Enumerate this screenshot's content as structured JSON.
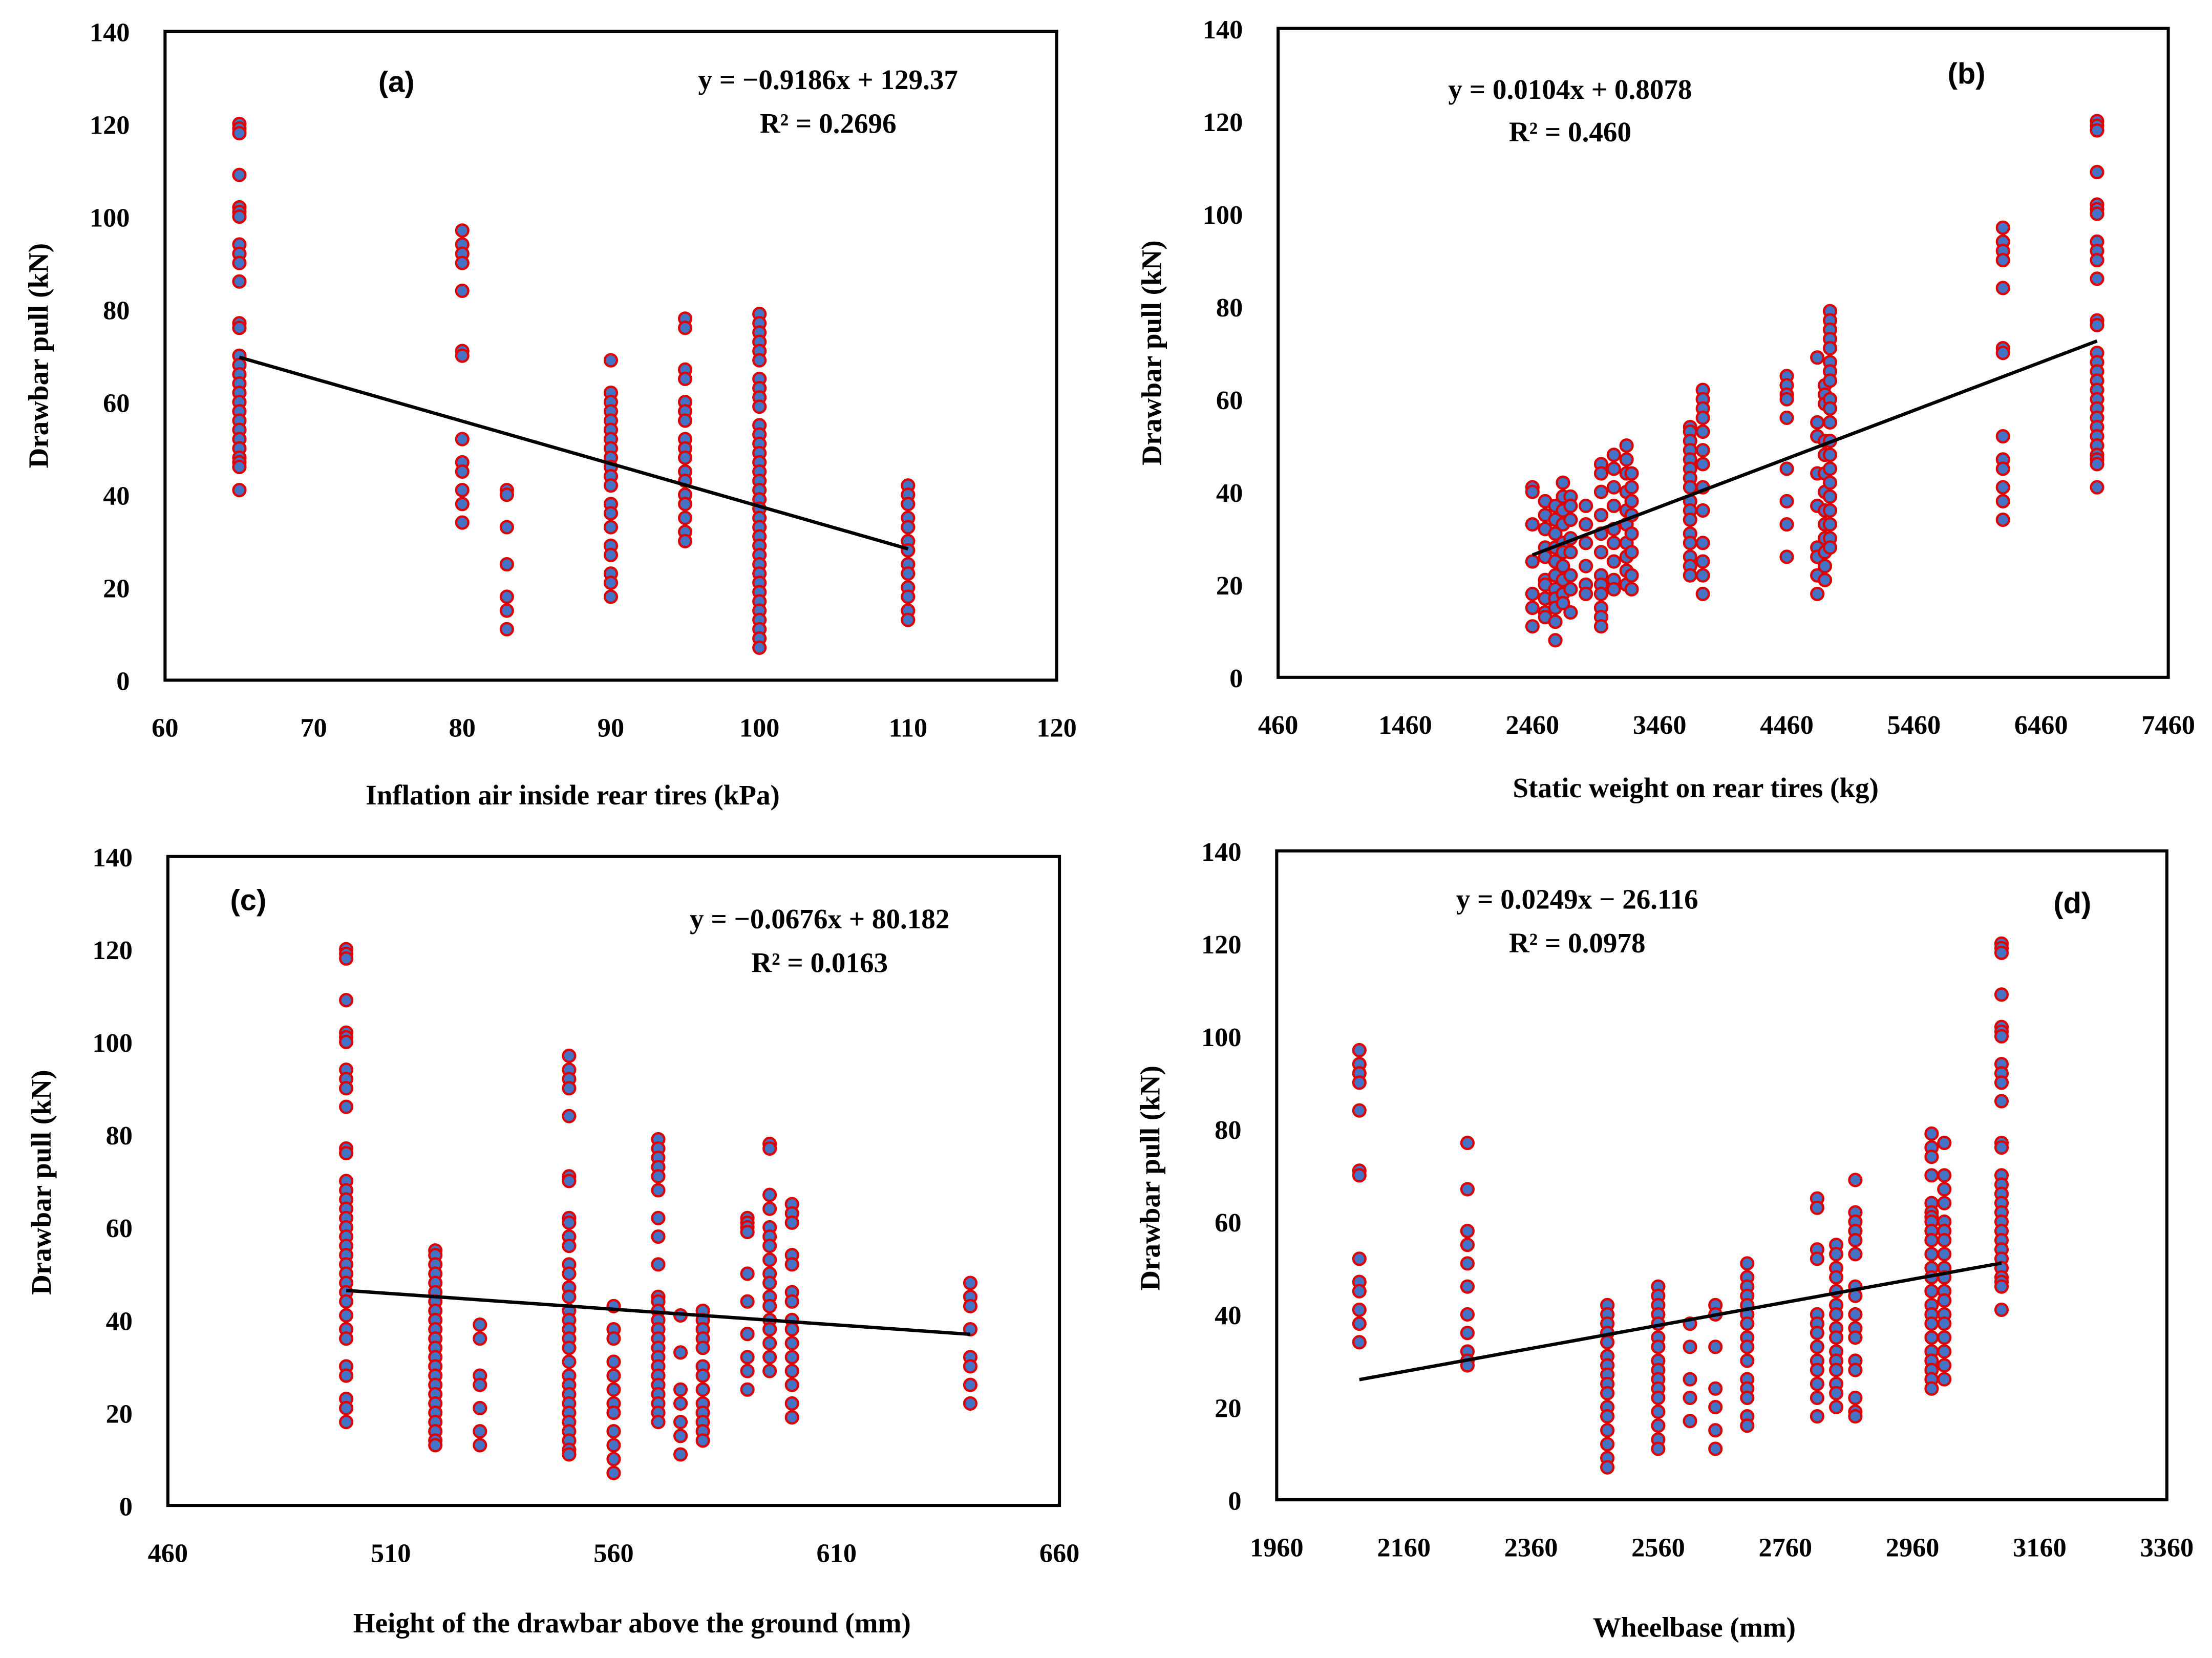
{
  "colors": {
    "marker_fill": "#4472C4",
    "marker_edge": "#E00000",
    "trendline": "#000000"
  },
  "chart_data": [
    {
      "type": "scatter",
      "panel_label": "(a)",
      "xlabel": "Inflation air inside  rear tires (kPa)",
      "ylabel": "Drawbar pull (kN)",
      "xlim": [
        60,
        120
      ],
      "ylim": [
        0,
        140
      ],
      "xticks": [
        "60",
        "70",
        "80",
        "90",
        "100",
        "110",
        "120"
      ],
      "yticks": [
        "0",
        "20",
        "40",
        "60",
        "80",
        "100",
        "120",
        "140"
      ],
      "equation": "y = −0.9186x + 129.37",
      "r2": "R² = 0.2696",
      "trend": {
        "slope": -0.9186,
        "intercept": 129.37,
        "x_from": 65,
        "x_to": 110
      },
      "groups": [
        {
          "x": 65,
          "y": [
            120,
            119,
            118,
            109,
            102,
            101,
            100,
            94,
            92,
            90,
            86,
            77,
            76,
            70,
            68,
            66,
            64,
            62,
            60,
            58,
            56,
            54,
            52,
            50,
            48,
            47,
            46,
            41
          ]
        },
        {
          "x": 80,
          "y": [
            97,
            94,
            92,
            90,
            84,
            71,
            70,
            52,
            47,
            45,
            41,
            38,
            34
          ]
        },
        {
          "x": 83,
          "y": [
            41,
            40,
            33,
            25,
            18,
            15,
            11
          ]
        },
        {
          "x": 90,
          "y": [
            69,
            62,
            60,
            58,
            56,
            54,
            52,
            50,
            48,
            46,
            44,
            42,
            38,
            36,
            33,
            29,
            27,
            23,
            21,
            18
          ]
        },
        {
          "x": 95,
          "y": [
            78,
            76,
            67,
            65,
            60,
            58,
            56,
            52,
            50,
            48,
            45,
            43,
            40,
            38,
            35,
            32,
            30
          ]
        },
        {
          "x": 100,
          "y": [
            79,
            77,
            75,
            73,
            71,
            69,
            65,
            63,
            61,
            59,
            55,
            53,
            51,
            49,
            47,
            45,
            43,
            41,
            39,
            37,
            35,
            33,
            31,
            29,
            27,
            25,
            23,
            21,
            19,
            17,
            15,
            13,
            11,
            9,
            7
          ]
        },
        {
          "x": 110,
          "y": [
            42,
            40,
            38,
            35,
            33,
            30,
            28,
            25,
            23,
            20,
            18,
            15,
            13
          ]
        }
      ]
    },
    {
      "type": "scatter",
      "panel_label": "(b)",
      "xlabel": "Static weight on rear tires (kg)",
      "ylabel": "Drawbar pull (kN)",
      "xlim": [
        460,
        7460
      ],
      "ylim": [
        0,
        140
      ],
      "xticks": [
        "460",
        "1460",
        "2460",
        "3460",
        "4460",
        "5460",
        "6460",
        "7460"
      ],
      "yticks": [
        "0",
        "20",
        "40",
        "60",
        "80",
        "100",
        "120",
        "140"
      ],
      "equation": "y = 0.0104x + 0.8078",
      "r2": "R² = 0.460",
      "trend": {
        "slope": 0.0104,
        "intercept": 0.8078,
        "x_from": 2460,
        "x_to": 6900
      },
      "groups": [
        {
          "x": 2460,
          "y": [
            41,
            40,
            33,
            25,
            18,
            15,
            11
          ]
        },
        {
          "x": 2560,
          "y": [
            38,
            35,
            32,
            28,
            26,
            21,
            20,
            17,
            14,
            13
          ]
        },
        {
          "x": 2640,
          "y": [
            37,
            34,
            31,
            28,
            25,
            22,
            19,
            17,
            15,
            12,
            8
          ]
        },
        {
          "x": 2700,
          "y": [
            42,
            39,
            36,
            33,
            29,
            27,
            24,
            21,
            18,
            16
          ]
        },
        {
          "x": 2760,
          "y": [
            39,
            37,
            34,
            30,
            27,
            22,
            19,
            14
          ]
        },
        {
          "x": 2880,
          "y": [
            37,
            33,
            29,
            24,
            20,
            18
          ]
        },
        {
          "x": 3000,
          "y": [
            46,
            44,
            40,
            35,
            31,
            27,
            22,
            20,
            18,
            15,
            13,
            11
          ]
        },
        {
          "x": 3100,
          "y": [
            48,
            45,
            41,
            37,
            32,
            29,
            25,
            21,
            19
          ]
        },
        {
          "x": 3200,
          "y": [
            50,
            47,
            44,
            40,
            36,
            33,
            29,
            26,
            23,
            20
          ]
        },
        {
          "x": 3240,
          "y": [
            44,
            41,
            38,
            35,
            31,
            27,
            22,
            19
          ]
        },
        {
          "x": 3700,
          "y": [
            54,
            53,
            51,
            49,
            47,
            45,
            43,
            41,
            38,
            36,
            34,
            31,
            29,
            26,
            24,
            22
          ]
        },
        {
          "x": 3800,
          "y": [
            62,
            60,
            58,
            56,
            53,
            49,
            46,
            41,
            36,
            29,
            25,
            22,
            18
          ]
        },
        {
          "x": 4460,
          "y": [
            65,
            63,
            61,
            60,
            56,
            45,
            38,
            33,
            26
          ]
        },
        {
          "x": 4700,
          "y": [
            69,
            55,
            52,
            44,
            37,
            28,
            26,
            22,
            18
          ]
        },
        {
          "x": 4760,
          "y": [
            63,
            61,
            59,
            51,
            48,
            44,
            40,
            36,
            33,
            30,
            27,
            24,
            21
          ]
        },
        {
          "x": 4800,
          "y": [
            79,
            77,
            75,
            73,
            71,
            68,
            66,
            64,
            60,
            58,
            55,
            51,
            48,
            45,
            42,
            39,
            36,
            33,
            30,
            28
          ]
        },
        {
          "x": 6160,
          "y": [
            97,
            94,
            92,
            90,
            84,
            71,
            70,
            52,
            47,
            45,
            41,
            38,
            34
          ]
        },
        {
          "x": 6900,
          "y": [
            120,
            119,
            118,
            109,
            102,
            101,
            100,
            94,
            92,
            90,
            86,
            77,
            76,
            70,
            68,
            66,
            64,
            62,
            60,
            58,
            56,
            54,
            52,
            50,
            48,
            47,
            46,
            41
          ]
        }
      ]
    },
    {
      "type": "scatter",
      "panel_label": "(c)",
      "xlabel": "Height of the drawbar above the ground (mm)",
      "ylabel": "Drawbar pull (kN)",
      "xlim": [
        460,
        660
      ],
      "ylim": [
        0,
        140
      ],
      "xticks": [
        "460",
        "510",
        "560",
        "610",
        "660"
      ],
      "yticks": [
        "0",
        "20",
        "40",
        "60",
        "80",
        "100",
        "120",
        "140"
      ],
      "equation": "y = −0.0676x + 80.182",
      "r2": "R² = 0.0163",
      "trend": {
        "slope": -0.0676,
        "intercept": 80.182,
        "x_from": 500,
        "x_to": 640
      },
      "groups": [
        {
          "x": 500,
          "y": [
            120,
            119,
            118,
            109,
            102,
            101,
            100,
            94,
            92,
            90,
            86,
            77,
            76,
            70,
            68,
            66,
            64,
            62,
            60,
            58,
            56,
            54,
            52,
            50,
            48,
            46,
            44,
            41,
            38,
            36,
            30,
            28,
            23,
            21,
            18
          ]
        },
        {
          "x": 520,
          "y": [
            55,
            54,
            52,
            50,
            48,
            46,
            44,
            42,
            40,
            38,
            36,
            34,
            32,
            30,
            28,
            26,
            24,
            22,
            20,
            18,
            16,
            14,
            13
          ]
        },
        {
          "x": 530,
          "y": [
            39,
            36,
            28,
            26,
            21,
            16,
            13
          ]
        },
        {
          "x": 550,
          "y": [
            97,
            94,
            92,
            90,
            84,
            71,
            70,
            62,
            61,
            58,
            56,
            52,
            50,
            47,
            45,
            42,
            40,
            38,
            36,
            34,
            31,
            28,
            26,
            24,
            22,
            20,
            18,
            16,
            14,
            12,
            11
          ]
        },
        {
          "x": 560,
          "y": [
            43,
            38,
            36,
            31,
            28,
            25,
            22,
            20,
            16,
            13,
            10,
            7
          ]
        },
        {
          "x": 570,
          "y": [
            79,
            77,
            75,
            73,
            71,
            68,
            62,
            58,
            52,
            45,
            44,
            42,
            40,
            38,
            36,
            34,
            32,
            30,
            28,
            26,
            24,
            22,
            20,
            18
          ]
        },
        {
          "x": 575,
          "y": [
            41,
            33,
            25,
            22,
            18,
            15,
            11
          ]
        },
        {
          "x": 580,
          "y": [
            42,
            40,
            38,
            36,
            34,
            30,
            28,
            25,
            22,
            20,
            18,
            16,
            14
          ]
        },
        {
          "x": 590,
          "y": [
            62,
            61,
            60,
            59,
            50,
            44,
            37,
            32,
            29,
            25
          ]
        },
        {
          "x": 595,
          "y": [
            78,
            77,
            67,
            64,
            60,
            58,
            56,
            53,
            50,
            48,
            45,
            43,
            40,
            38,
            35,
            32,
            29
          ]
        },
        {
          "x": 600,
          "y": [
            65,
            63,
            61,
            54,
            52,
            46,
            44,
            40,
            38,
            35,
            32,
            29,
            26,
            22,
            19
          ]
        },
        {
          "x": 640,
          "y": [
            48,
            45,
            43,
            38,
            32,
            30,
            26,
            22
          ]
        }
      ]
    },
    {
      "type": "scatter",
      "panel_label": "(d)",
      "xlabel": "Wheelbase (mm)",
      "ylabel": "Drawbar pull (kN)",
      "xlim": [
        1960,
        3360
      ],
      "ylim": [
        0,
        140
      ],
      "xticks": [
        "1960",
        "2160",
        "2360",
        "2560",
        "2760",
        "2960",
        "3160",
        "3360"
      ],
      "yticks": [
        "0",
        "20",
        "40",
        "60",
        "80",
        "100",
        "120",
        "140"
      ],
      "equation": "y = 0.0249x − 26.116",
      "r2": "R² = 0.0978",
      "trend": {
        "slope": 0.0249,
        "intercept": -26.116,
        "x_from": 2090,
        "x_to": 3100
      },
      "groups": [
        {
          "x": 2090,
          "y": [
            97,
            94,
            92,
            90,
            84,
            71,
            70,
            52,
            47,
            45,
            41,
            38,
            34
          ]
        },
        {
          "x": 2260,
          "y": [
            77,
            67,
            58,
            55,
            51,
            46,
            40,
            36,
            32,
            30,
            29
          ]
        },
        {
          "x": 2480,
          "y": [
            42,
            40,
            38,
            36,
            34,
            31,
            29,
            27,
            25,
            23,
            20,
            18,
            15,
            12,
            9,
            7
          ]
        },
        {
          "x": 2560,
          "y": [
            46,
            44,
            42,
            40,
            38,
            35,
            33,
            30,
            28,
            26,
            24,
            22,
            19,
            16,
            13,
            11
          ]
        },
        {
          "x": 2610,
          "y": [
            38,
            33,
            26,
            22,
            17
          ]
        },
        {
          "x": 2650,
          "y": [
            42,
            40,
            33,
            24,
            20,
            15,
            11
          ]
        },
        {
          "x": 2700,
          "y": [
            51,
            48,
            46,
            44,
            42,
            40,
            38,
            35,
            33,
            30,
            26,
            24,
            22,
            18,
            16
          ]
        },
        {
          "x": 2810,
          "y": [
            65,
            63,
            54,
            52,
            40,
            38,
            36,
            33,
            30,
            28,
            25,
            22,
            18
          ]
        },
        {
          "x": 2840,
          "y": [
            55,
            53,
            50,
            48,
            45,
            42,
            40,
            37,
            35,
            32,
            30,
            28,
            25,
            23,
            20
          ]
        },
        {
          "x": 2870,
          "y": [
            69,
            62,
            60,
            58,
            56,
            53,
            46,
            44,
            40,
            37,
            35,
            30,
            28,
            22,
            19,
            18
          ]
        },
        {
          "x": 2990,
          "y": [
            79,
            76,
            74,
            70,
            64,
            62,
            61,
            60,
            58,
            56,
            53,
            50,
            48,
            45,
            42,
            40,
            38,
            35,
            32,
            30,
            28,
            26,
            24
          ]
        },
        {
          "x": 3010,
          "y": [
            77,
            70,
            67,
            64,
            60,
            58,
            56,
            53,
            50,
            48,
            45,
            43,
            40,
            38,
            35,
            32,
            29,
            26
          ]
        },
        {
          "x": 3100,
          "y": [
            120,
            119,
            118,
            109,
            102,
            101,
            100,
            94,
            92,
            90,
            86,
            77,
            76,
            70,
            68,
            66,
            64,
            62,
            60,
            58,
            56,
            54,
            52,
            50,
            48,
            47,
            46,
            41
          ]
        }
      ]
    }
  ]
}
